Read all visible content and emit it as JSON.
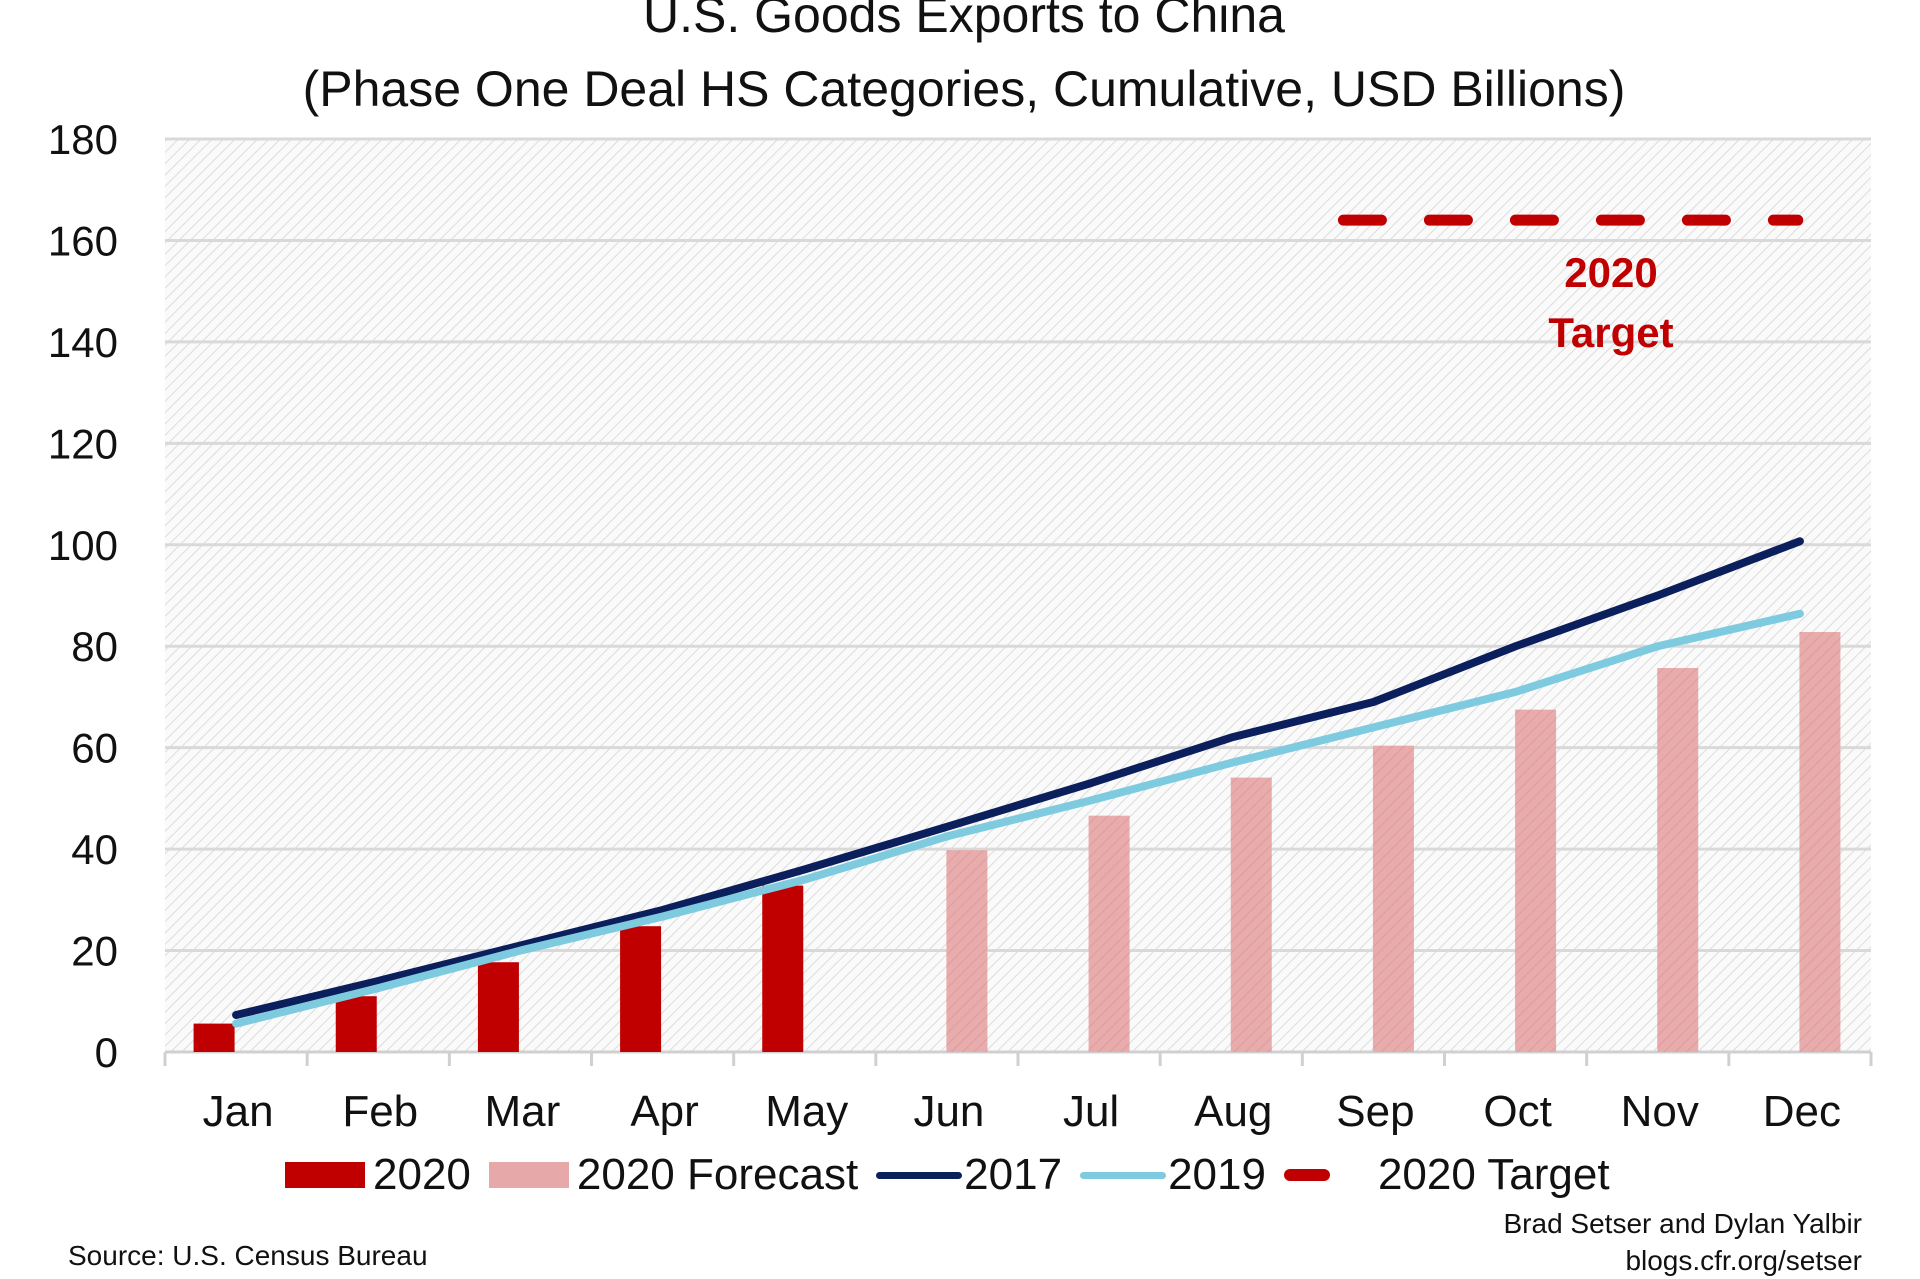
{
  "chart_data": {
    "type": "bar",
    "title": "U.S. Goods Exports to China",
    "subtitle": "(Phase One Deal HS Categories, Cumulative, USD Billions)",
    "xlabel": "",
    "ylabel": "",
    "ylim": [
      0,
      180
    ],
    "yticks": [
      "0",
      "20",
      "40",
      "60",
      "80",
      "100",
      "120",
      "140",
      "160",
      "180"
    ],
    "categories": [
      "Jan",
      "Feb",
      "Mar",
      "Apr",
      "May",
      "Jun",
      "Jul",
      "Aug",
      "Sep",
      "Oct",
      "Nov",
      "Dec"
    ],
    "grid": true,
    "legend_position": "bottom",
    "series": [
      {
        "name": "2020",
        "type": "bar",
        "color": "#c00000",
        "values": [
          5.6,
          11,
          17.7,
          24.8,
          32.8,
          null,
          null,
          null,
          null,
          null,
          null,
          null
        ]
      },
      {
        "name": "2020 Forecast",
        "type": "bar",
        "color": "#e6a8a8",
        "values": [
          null,
          null,
          null,
          null,
          null,
          39.8,
          46.6,
          54.1,
          60.4,
          67.5,
          75.7,
          82.8
        ]
      },
      {
        "name": "2017",
        "type": "line",
        "color": "#0b1f5c",
        "values": [
          7.3,
          14,
          21,
          28,
          36,
          44.4,
          52.9,
          62,
          69,
          80,
          90,
          100.7
        ]
      },
      {
        "name": "2019",
        "type": "line",
        "color": "#7ecbe0",
        "values": [
          5.6,
          12.6,
          20,
          26.7,
          34,
          42.5,
          49.5,
          57,
          64,
          71,
          80,
          86.4
        ]
      },
      {
        "name": "2020 Target",
        "type": "dashed-line",
        "color": "#c00000",
        "value": 164
      }
    ],
    "annotations": [
      {
        "text_line1": "2020",
        "text_line2": "Target",
        "color": "#c00000"
      }
    ]
  },
  "source": "Source: U.S. Census Bureau",
  "credit_line1": "Brad Setser and Dylan Yalbir",
  "credit_line2": "blogs.cfr.org/setser"
}
